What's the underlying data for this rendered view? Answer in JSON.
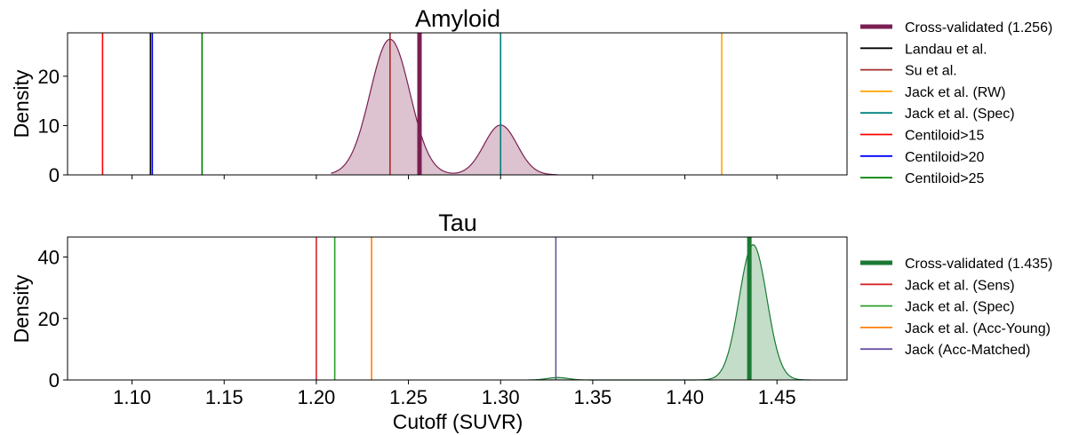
{
  "chart_data": [
    {
      "type": "line",
      "title": "Amyloid",
      "xlabel": "",
      "ylabel": "Density",
      "xlim": [
        1.065,
        1.488
      ],
      "ylim": [
        0,
        28.8
      ],
      "yticks": [
        0,
        10,
        20
      ],
      "xticks": [
        1.1,
        1.15,
        1.2,
        1.25,
        1.3,
        1.35,
        1.4,
        1.45
      ],
      "show_xticklabels": false,
      "density": {
        "color": "#7b1f53",
        "fill": "#dcc3cf",
        "components": [
          {
            "mu": 1.24,
            "sigma": 0.0108,
            "height": 27.5
          },
          {
            "mu": 1.3,
            "sigma": 0.009,
            "height": 10.1
          }
        ],
        "x_range": [
          1.208,
          1.331
        ]
      },
      "vlines": [
        {
          "name": "Cross-validated (1.256)",
          "x": 1.256,
          "color": "#7b1f53",
          "bold": true
        },
        {
          "name": "Landau et al.",
          "x": 1.11,
          "color": "#000000"
        },
        {
          "name": "Su et al.",
          "x": 1.24,
          "color": "#a52a2a"
        },
        {
          "name": "Jack et al. (RW)",
          "x": 1.42,
          "color": "#ffa500"
        },
        {
          "name": "Jack et al. (Spec)",
          "x": 1.3,
          "color": "#008080"
        },
        {
          "name": "Centiloid>15",
          "x": 1.084,
          "color": "#ff0000"
        },
        {
          "name": "Centiloid>20",
          "x": 1.111,
          "color": "#0000ff"
        },
        {
          "name": "Centiloid>25",
          "x": 1.138,
          "color": "#008000"
        }
      ],
      "legend_position": "right"
    },
    {
      "type": "line",
      "title": "Tau",
      "xlabel": "Cutoff (SUVR)",
      "ylabel": "Density",
      "xlim": [
        1.065,
        1.488
      ],
      "ylim": [
        0,
        46.5
      ],
      "yticks": [
        0,
        20,
        40
      ],
      "xticks": [
        1.1,
        1.15,
        1.2,
        1.25,
        1.3,
        1.35,
        1.4,
        1.45
      ],
      "xticklabels": [
        "1.10",
        "1.15",
        "1.20",
        "1.25",
        "1.30",
        "1.35",
        "1.40",
        "1.45"
      ],
      "show_xticklabels": true,
      "density": {
        "color": "#1a7a34",
        "fill": "#c3ddc8",
        "components": [
          {
            "mu": 1.437,
            "sigma": 0.0075,
            "height": 44
          },
          {
            "mu": 1.331,
            "sigma": 0.0055,
            "height": 0.8
          }
        ],
        "x_range": [
          1.315,
          1.468
        ]
      },
      "vlines": [
        {
          "name": "Cross-validated (1.435)",
          "x": 1.435,
          "color": "#1a7a34",
          "bold": true
        },
        {
          "name": "Jack et al. (Sens)",
          "x": 1.2,
          "color": "#d62728"
        },
        {
          "name": "Jack et al. (Spec)",
          "x": 1.21,
          "color": "#2ca02c"
        },
        {
          "name": "Jack et al. (Acc-Young)",
          "x": 1.23,
          "color": "#ff7f0e"
        },
        {
          "name": "Jack (Acc-Matched)",
          "x": 1.33,
          "color": "#6a51a3"
        }
      ],
      "legend_position": "right"
    }
  ]
}
